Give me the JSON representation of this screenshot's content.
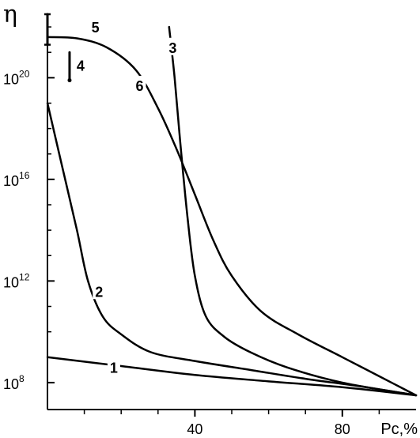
{
  "chart_data": {
    "type": "line",
    "xlabel": "Pc,%",
    "ylabel": "η",
    "xlim": [
      0,
      100
    ],
    "ylim": [
      7.5,
      22.5
    ],
    "y_scale": "log10",
    "x_ticks": [
      {
        "value": 40,
        "label": "40"
      },
      {
        "value": 80,
        "label": "80"
      }
    ],
    "x_minor_ticks": [
      10,
      20,
      30,
      50,
      60,
      70,
      90
    ],
    "y_ticks": [
      {
        "value": 8,
        "base": "10",
        "exp": "8"
      },
      {
        "value": 12,
        "base": "10",
        "exp": "12"
      },
      {
        "value": 16,
        "base": "10",
        "exp": "16"
      },
      {
        "value": 20,
        "base": "10",
        "exp": "20"
      }
    ],
    "y_minor_ticks": [
      9,
      10,
      11,
      13,
      14,
      15,
      17,
      18,
      19,
      21,
      22
    ],
    "series": [
      {
        "name": "1",
        "label_at": [
          18,
          8.6
        ],
        "points": [
          [
            0,
            9.0
          ],
          [
            20,
            8.65
          ],
          [
            40,
            8.3
          ],
          [
            60,
            8.05
          ],
          [
            80,
            7.82
          ],
          [
            100,
            7.5
          ]
        ]
      },
      {
        "name": "2",
        "label_at": [
          14,
          11.6
        ],
        "points": [
          [
            0,
            19.0
          ],
          [
            4,
            16.5
          ],
          [
            8,
            14.0
          ],
          [
            11,
            12.0
          ],
          [
            15,
            10.6
          ],
          [
            20,
            9.9
          ],
          [
            28,
            9.2
          ],
          [
            40,
            8.85
          ],
          [
            55,
            8.5
          ],
          [
            70,
            8.15
          ],
          [
            85,
            7.85
          ],
          [
            100,
            7.5
          ]
        ]
      },
      {
        "name": "3",
        "label_at": [
          34,
          21.2
        ],
        "points": [
          [
            33,
            22.0
          ],
          [
            34.5,
            20.0
          ],
          [
            36,
            17.5
          ],
          [
            38,
            14.5
          ],
          [
            40,
            12.2
          ],
          [
            43,
            10.6
          ],
          [
            48,
            9.8
          ],
          [
            55,
            9.2
          ],
          [
            65,
            8.6
          ],
          [
            80,
            8.0
          ],
          [
            100,
            7.5
          ]
        ]
      },
      {
        "name": "4",
        "label_at": [
          9,
          20.5
        ],
        "points": [
          [
            6,
            21.0
          ],
          [
            6,
            19.9
          ]
        ]
      },
      {
        "name": "5",
        "label_at": [
          13,
          22.0
        ],
        "points": [
          [
            0,
            22.5
          ],
          [
            0,
            21.3
          ]
        ]
      },
      {
        "name": "6",
        "label_at": [
          25,
          19.7
        ],
        "points": [
          [
            0,
            21.6
          ],
          [
            8,
            21.55
          ],
          [
            16,
            21.2
          ],
          [
            24,
            20.3
          ],
          [
            30,
            18.8
          ],
          [
            35,
            17.2
          ],
          [
            40,
            15.4
          ],
          [
            45,
            13.6
          ],
          [
            50,
            12.2
          ],
          [
            58,
            10.8
          ],
          [
            68,
            9.9
          ],
          [
            80,
            9.0
          ],
          [
            90,
            8.25
          ],
          [
            100,
            7.5
          ]
        ]
      }
    ]
  }
}
